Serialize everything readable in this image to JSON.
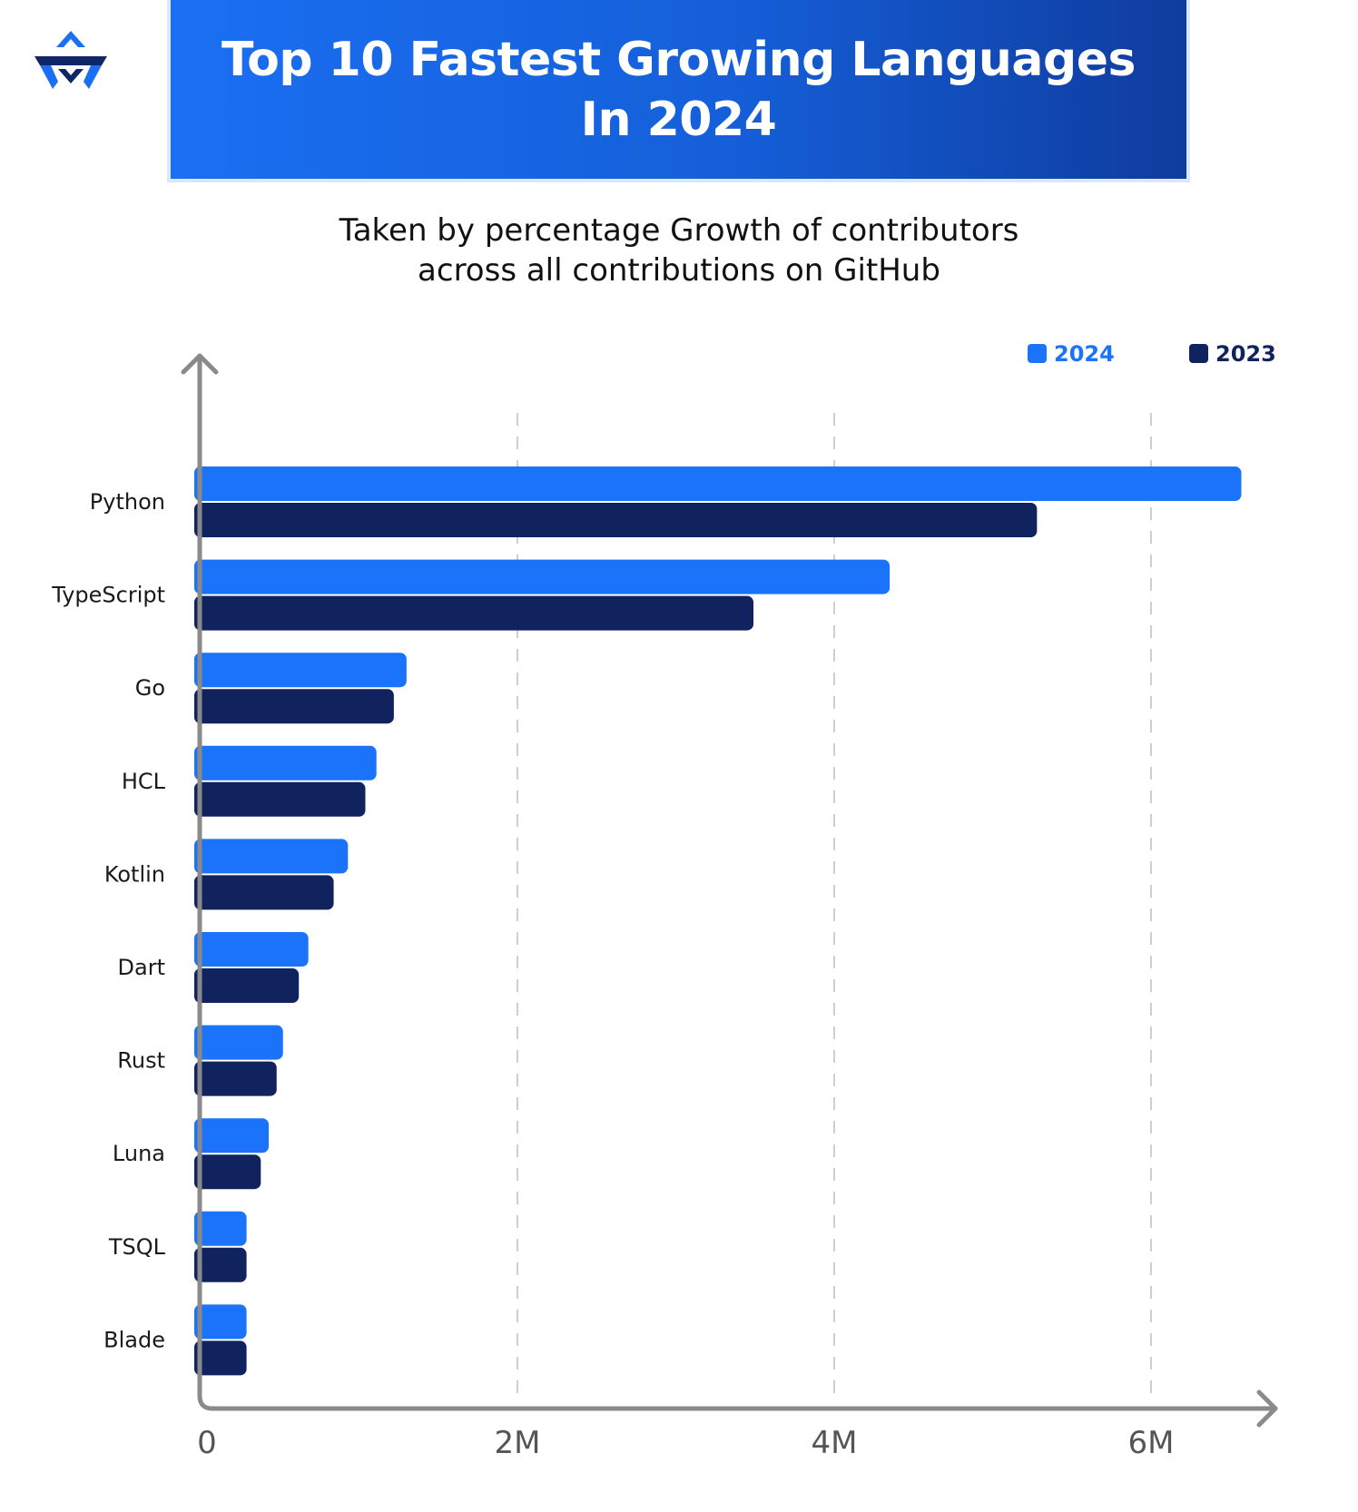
{
  "header": {
    "title_line1": "Top 10 Fastest Growing Languages",
    "title_line2": "In 2024",
    "subtitle_line1": "Taken by percentage Growth of contributors",
    "subtitle_line2": "across all contributions on GitHub"
  },
  "logo": {
    "icon": "brand-logo-icon",
    "colors": [
      "#1a6ff2",
      "#0f2766"
    ]
  },
  "colors": {
    "series_2024": "#1a73f8",
    "series_2023": "#11235e",
    "axis": "#8a8a8a",
    "grid": "#cfcfcf",
    "banner_start": "#1a6ff2",
    "banner_end": "#0f3c9e"
  },
  "chart_data": {
    "type": "bar",
    "orientation": "horizontal",
    "title": "Top 10 Fastest Growing Languages In 2024",
    "subtitle": "Taken by percentage Growth of contributors across all contributions on GitHub",
    "xlabel": "",
    "ylabel": "",
    "categories": [
      "Python",
      "TypeScript",
      "Go",
      "HCL",
      "Kotlin",
      "Dart",
      "Rust",
      "Luna",
      "TSQL",
      "Blade"
    ],
    "series": [
      {
        "name": "2024",
        "values": [
          6570000,
          4350000,
          1300000,
          1110000,
          930000,
          680000,
          520000,
          430000,
          290000,
          290000
        ]
      },
      {
        "name": "2023",
        "values": [
          5280000,
          3490000,
          1220000,
          1040000,
          840000,
          620000,
          480000,
          380000,
          290000,
          290000
        ]
      }
    ],
    "xlim": [
      0,
      6800000
    ],
    "xticks": [
      0,
      2000000,
      4000000,
      6000000
    ],
    "xtick_labels": [
      "0",
      "2M",
      "4M",
      "6M"
    ],
    "grid": "vertical dashed",
    "legend_position": "top-right"
  }
}
